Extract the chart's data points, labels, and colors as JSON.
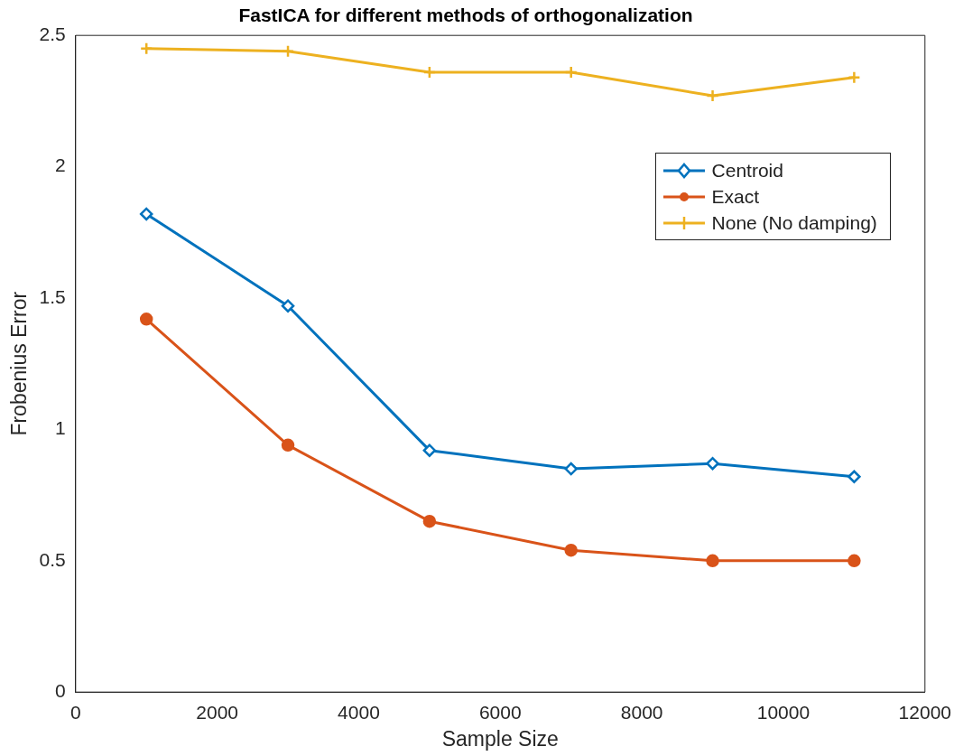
{
  "chart_data": {
    "type": "line",
    "title": "FastICA for different methods of orthogonalization",
    "xlabel": "Sample Size",
    "ylabel": "Frobenius Error",
    "x": [
      1000,
      3000,
      5000,
      7000,
      9000,
      11000
    ],
    "series": [
      {
        "name": "Centroid",
        "color": "#0072bd",
        "marker": "diamond",
        "values": [
          1.82,
          1.47,
          0.92,
          0.85,
          0.87,
          0.82
        ]
      },
      {
        "name": "Exact",
        "color": "#d95319",
        "marker": "circle",
        "values": [
          1.42,
          0.94,
          0.65,
          0.54,
          0.5,
          0.5
        ]
      },
      {
        "name": "None (No damping)",
        "color": "#edb120",
        "marker": "cross",
        "values": [
          2.45,
          2.44,
          2.36,
          2.36,
          2.27,
          2.34
        ]
      }
    ],
    "xlim": [
      0,
      12000
    ],
    "xticks": [
      0,
      2000,
      4000,
      6000,
      8000,
      10000,
      12000
    ],
    "ylim": [
      0,
      2.5
    ],
    "yticks": [
      0,
      0.5,
      1,
      1.5,
      2,
      2.5
    ],
    "legend": "top right",
    "grid": false,
    "line_style": "solid"
  }
}
